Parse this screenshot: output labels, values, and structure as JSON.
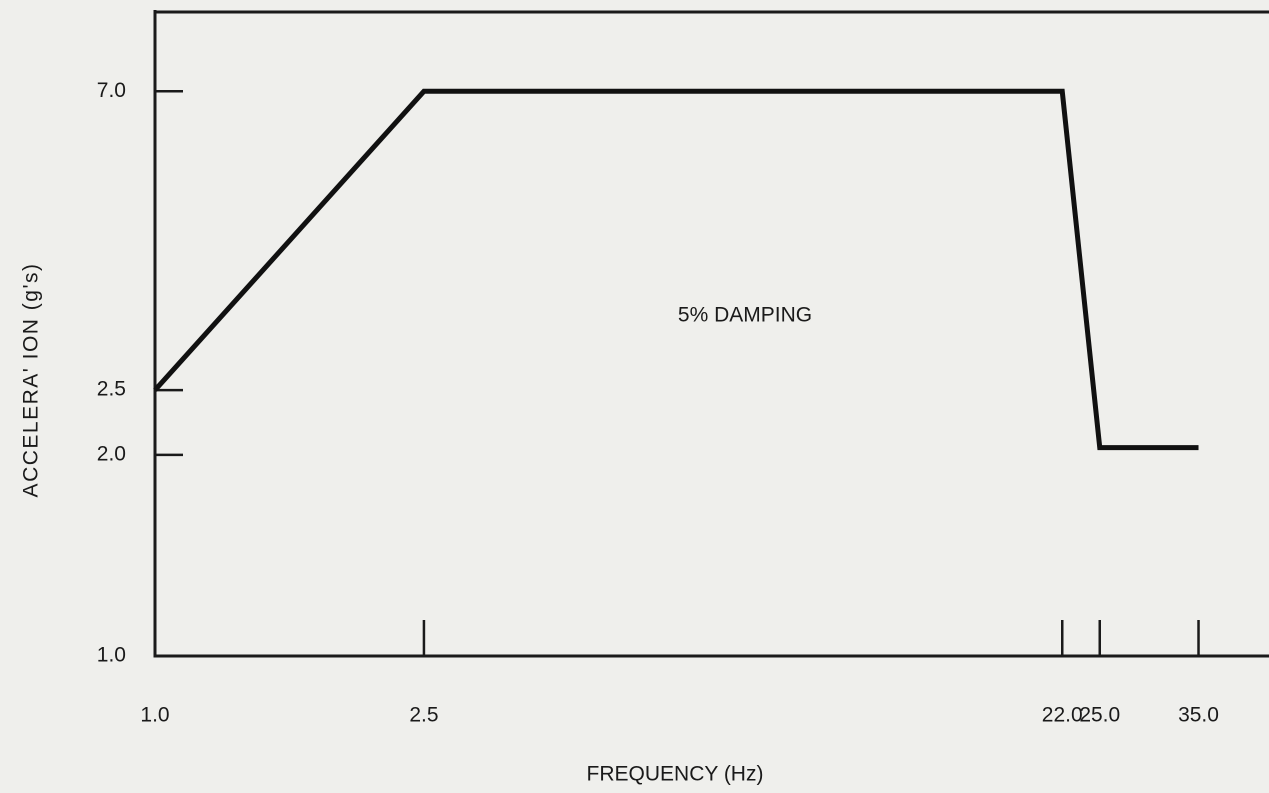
{
  "chart_data": {
    "type": "line",
    "x": [
      1,
      2.5,
      22,
      25,
      35
    ],
    "values": [
      2.5,
      7.0,
      7.0,
      2.05,
      2.05
    ],
    "color": "#111111",
    "xlog": true,
    "ylog": true,
    "xlim": [
      1,
      44.5
    ],
    "ylim": [
      1,
      9.2
    ],
    "xticks": [
      {
        "value": 1,
        "label": "1.0"
      },
      2.5,
      {
        "value": 22,
        "label": "22.0"
      },
      {
        "value": 25,
        "label": "25.0"
      },
      {
        "value": 35,
        "label": "35.0"
      }
    ],
    "yticks": [
      {
        "value": 1,
        "label": "1.0"
      },
      {
        "value": 2,
        "label": "2.0"
      },
      2.5,
      {
        "value": 7,
        "label": "7.0"
      }
    ],
    "xlabel": "FREQUENCY (Hz)",
    "ylabel": "ACCELERA' ION (g's)",
    "annotation": "5% DAMPING"
  }
}
